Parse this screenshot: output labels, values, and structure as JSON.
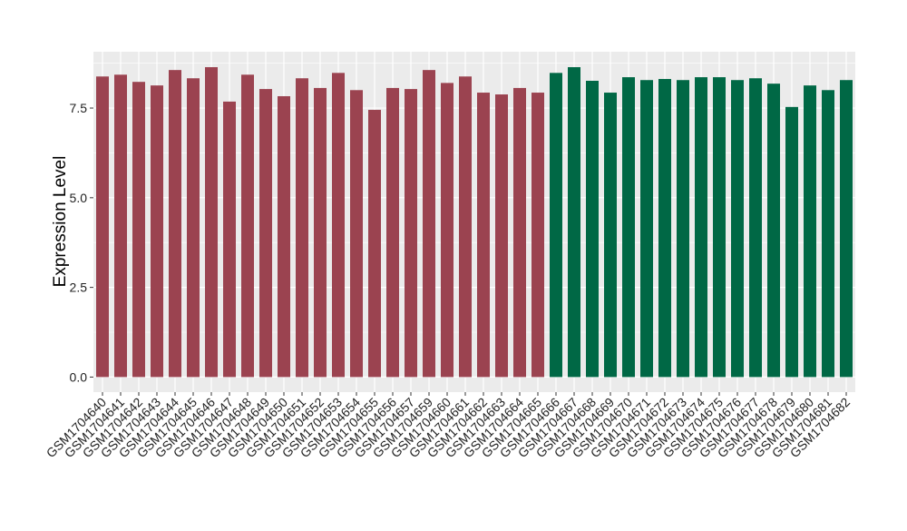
{
  "chart_data": {
    "type": "bar",
    "title": "",
    "xlabel": "",
    "ylabel": "Expression Level",
    "ylim": [
      -0.42,
      9.07
    ],
    "yticks": [
      0.0,
      2.5,
      5.0,
      7.5
    ],
    "ytick_labels": [
      "0.0",
      "2.5",
      "5.0",
      "7.5"
    ],
    "grid": true,
    "legend": "none",
    "categories": [
      "GSM1704640",
      "GSM1704641",
      "GSM1704642",
      "GSM1704643",
      "GSM1704644",
      "GSM1704645",
      "GSM1704646",
      "GSM1704647",
      "GSM1704648",
      "GSM1704649",
      "GSM1704650",
      "GSM1704651",
      "GSM1704652",
      "GSM1704653",
      "GSM1704654",
      "GSM1704655",
      "GSM1704656",
      "GSM1704657",
      "GSM1704659",
      "GSM1704660",
      "GSM1704661",
      "GSM1704662",
      "GSM1704663",
      "GSM1704664",
      "GSM1704665",
      "GSM1704666",
      "GSM1704667",
      "GSM1704668",
      "GSM1704669",
      "GSM1704670",
      "GSM1704671",
      "GSM1704672",
      "GSM1704673",
      "GSM1704674",
      "GSM1704675",
      "GSM1704676",
      "GSM1704677",
      "GSM1704678",
      "GSM1704679",
      "GSM1704680",
      "GSM1704681",
      "GSM1704682"
    ],
    "values": [
      8.38,
      8.43,
      8.23,
      8.13,
      8.56,
      8.33,
      8.64,
      7.68,
      8.43,
      8.03,
      7.83,
      8.33,
      8.06,
      8.48,
      8.0,
      7.45,
      8.06,
      8.03,
      8.56,
      8.2,
      8.38,
      7.93,
      7.88,
      8.06,
      7.93,
      8.48,
      8.64,
      8.26,
      7.93,
      8.36,
      8.28,
      8.31,
      8.28,
      8.36,
      8.36,
      8.28,
      8.33,
      8.18,
      7.53,
      8.13,
      8.0,
      8.28
    ],
    "groups": [
      0,
      0,
      0,
      0,
      0,
      0,
      0,
      0,
      0,
      0,
      0,
      0,
      0,
      0,
      0,
      0,
      0,
      0,
      0,
      0,
      0,
      0,
      0,
      0,
      0,
      1,
      1,
      1,
      1,
      1,
      1,
      1,
      1,
      1,
      1,
      1,
      1,
      1,
      1,
      1,
      1,
      1
    ],
    "group_colors": [
      "#9b4350",
      "#006845"
    ],
    "panel_background": "#ebebeb",
    "grid_color": "#ffffff"
  }
}
